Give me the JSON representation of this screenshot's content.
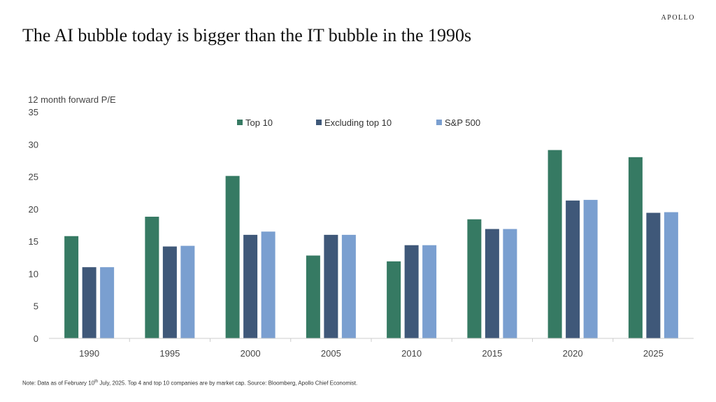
{
  "brand": "APOLLO",
  "title": "The AI bubble today is bigger than the IT bubble in the 1990s",
  "note": {
    "prefix": "Note: Data as of February 10",
    "sup": "th",
    "suffix": " July, 2025. Top 4 and top 10 companies are by market cap. Source: Bloomberg, Apollo Chief Economist."
  },
  "colors": {
    "top10": "#367a63",
    "excl": "#3f5879",
    "sp500": "#7a9fd0",
    "axis": "#cccccc"
  },
  "chart_data": {
    "type": "bar",
    "title": "The AI bubble today is bigger than the IT bubble in the 1990s",
    "ylabel": "12 month forward P/E",
    "xlabel": "",
    "ylim": [
      0,
      35
    ],
    "yticks": [
      0,
      5,
      10,
      15,
      20,
      25,
      30,
      35
    ],
    "grid": false,
    "legend_position": "top-center",
    "categories": [
      "1990",
      "1995",
      "2000",
      "2005",
      "2010",
      "2015",
      "2020",
      "2025"
    ],
    "series": [
      {
        "name": "Top 10",
        "color": "#367a63",
        "values": [
          15.8,
          18.8,
          25.1,
          12.8,
          11.9,
          18.4,
          29.1,
          28.0
        ]
      },
      {
        "name": "Excluding top 10",
        "color": "#3f5879",
        "values": [
          11.0,
          14.2,
          16.0,
          16.0,
          14.4,
          16.9,
          21.3,
          19.4
        ]
      },
      {
        "name": "S&P 500",
        "color": "#7a9fd0",
        "values": [
          11.0,
          14.3,
          16.5,
          16.0,
          14.4,
          16.9,
          21.4,
          19.5
        ]
      }
    ]
  }
}
